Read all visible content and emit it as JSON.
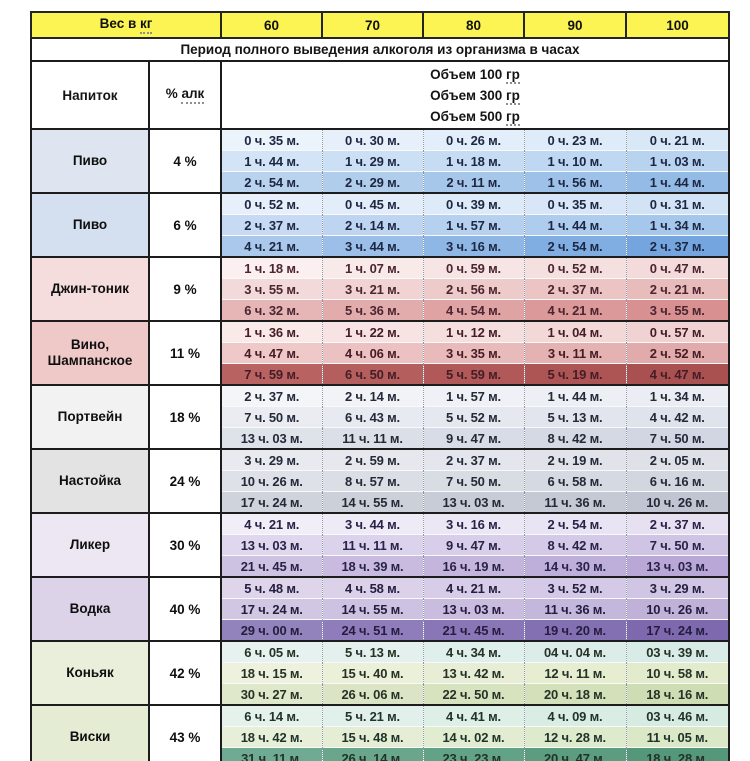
{
  "header": {
    "weight_label_prefix": "Вес в ",
    "weight_label_unit": "кг",
    "drink_col": "Напиток",
    "alc_prefix": "% ",
    "alc_word": "алк",
    "volume_lines": [
      {
        "text": "Объем 100 ",
        "unit": "гр"
      },
      {
        "text": "Объем 300 ",
        "unit": "гр"
      },
      {
        "text": "Объем 500 ",
        "unit": "гр"
      }
    ]
  },
  "colors": {
    "header_yellow": "#fbf452",
    "table_border": "#1c1c1c",
    "background": "#ffffff"
  },
  "chart_data": {
    "type": "table",
    "title": "Период полного выведения алкоголя из организма в часах",
    "weight_header": "Вес в кг",
    "weights": [
      "60",
      "70",
      "80",
      "90",
      "100"
    ],
    "volumes_g": [
      100,
      300,
      500
    ],
    "drinks": [
      {
        "name": "Пиво",
        "name_lines": [
          "Пиво"
        ],
        "abv": "4 %",
        "times": [
          [
            "0 ч. 35 м.",
            "0 ч. 30 м.",
            "0 ч. 26 м.",
            "0 ч. 23 м.",
            "0 ч. 21 м."
          ],
          [
            "1 ч. 44 м.",
            "1 ч. 29 м.",
            "1 ч. 18 м.",
            "1 ч. 10 м.",
            "1 ч. 03 м."
          ],
          [
            "2 ч. 54 м.",
            "2 ч. 29 м.",
            "2 ч. 11 м.",
            "1 ч. 56 м.",
            "1 ч. 44 м."
          ]
        ],
        "style": {
          "name_bg": "#dfe5f0",
          "text_color": "#1d2742",
          "row_bgs": [
            [
              "#ebf3fb",
              "#d9e8f7"
            ],
            [
              "#d3e4f6",
              "#b7d3f0"
            ],
            [
              "#b9d3ee",
              "#93bbe6"
            ]
          ]
        }
      },
      {
        "name": "Пиво",
        "name_lines": [
          "Пиво"
        ],
        "abv": "6 %",
        "times": [
          [
            "0 ч. 52 м.",
            "0 ч. 45 м.",
            "0 ч. 39 м.",
            "0 ч. 35 м.",
            "0 ч. 31 м."
          ],
          [
            "2 ч. 37 м.",
            "2 ч. 14 м.",
            "1 ч. 57 м.",
            "1 ч. 44 м.",
            "1 ч. 34 м."
          ],
          [
            "4 ч. 21 м.",
            "3 ч. 44 м.",
            "3 ч. 16 м.",
            "2 ч. 54 м.",
            "2 ч. 37 м."
          ]
        ],
        "style": {
          "name_bg": "#d4dff0",
          "text_color": "#1d2742",
          "row_bgs": [
            [
              "#e7f0fa",
              "#d3e3f6"
            ],
            [
              "#c6daf3",
              "#a6c7ec"
            ],
            [
              "#a9c8ec",
              "#74a5de"
            ]
          ]
        }
      },
      {
        "name": "Джин-тоник",
        "name_lines": [
          "Джин-тоник"
        ],
        "abv": "9 %",
        "times": [
          [
            "1 ч. 18 м.",
            "1 ч. 07 м.",
            "0 ч. 59 м.",
            "0 ч. 52 м.",
            "0 ч. 47 м."
          ],
          [
            "3 ч. 55 м.",
            "3 ч. 21 м.",
            "2 ч. 56 м.",
            "2 ч. 37 м.",
            "2 ч. 21 м."
          ],
          [
            "6 ч. 32 м.",
            "5 ч. 36 м.",
            "4 ч. 54 м.",
            "4 ч. 21 м.",
            "3 ч. 55 м."
          ]
        ],
        "style": {
          "name_bg": "#f5dddd",
          "text_color": "#4b2530",
          "row_bgs": [
            [
              "#fbefef",
              "#f3dbdb"
            ],
            [
              "#f3dada",
              "#e9bcbc"
            ],
            [
              "#e6b5b5",
              "#d89090"
            ]
          ]
        }
      },
      {
        "name": "Вино, Шампанское",
        "name_lines": [
          "Вино,",
          "Шампанское"
        ],
        "abv": "11 %",
        "times": [
          [
            "1 ч. 36 м.",
            "1 ч. 22 м.",
            "1 ч. 12 м.",
            "1 ч. 04 м.",
            "0 ч. 57 м."
          ],
          [
            "4 ч. 47 м.",
            "4 ч. 06 м.",
            "3 ч. 35 м.",
            "3 ч. 11 м.",
            "2 ч. 52 м."
          ],
          [
            "7 ч. 59 м.",
            "6 ч. 50 м.",
            "5 ч. 59 м.",
            "5 ч. 19 м.",
            "4 ч. 47 м."
          ]
        ],
        "style": {
          "name_bg": "#efc8c8",
          "text_color": "#441d26",
          "row_bgs": [
            [
              "#f9e9e9",
              "#f1d2d2"
            ],
            [
              "#efc8c8",
              "#e2abab"
            ],
            [
              "#b96262",
              "#a95050"
            ]
          ]
        }
      },
      {
        "name": "Портвейн",
        "name_lines": [
          "Портвейн"
        ],
        "abv": "18 %",
        "times": [
          [
            "2 ч. 37 м.",
            "2 ч. 14 м.",
            "1 ч. 57 м.",
            "1 ч. 44 м.",
            "1 ч. 34 м."
          ],
          [
            "7 ч. 50 м.",
            "6 ч. 43 м.",
            "5 ч. 52 м.",
            "5 ч. 13 м.",
            "4 ч. 42 м."
          ],
          [
            "13 ч. 03 м.",
            "11 ч. 11 м.",
            "9 ч. 47 м.",
            "8 ч. 42 м.",
            "7 ч. 50 м."
          ]
        ],
        "style": {
          "name_bg": "#f2f2f2",
          "text_color": "#262a38",
          "row_bgs": [
            [
              "#f3f5f8",
              "#eaedf3"
            ],
            [
              "#eaecf1",
              "#dfe3eb"
            ],
            [
              "#dee2e9",
              "#d1d6e2"
            ]
          ]
        }
      },
      {
        "name": "Настойка",
        "name_lines": [
          "Настойка"
        ],
        "abv": "24 %",
        "times": [
          [
            "3 ч. 29 м.",
            "2 ч. 59 м.",
            "2 ч. 37 м.",
            "2 ч. 19 м.",
            "2 ч. 05 м."
          ],
          [
            "10 ч. 26 м.",
            "8 ч. 57 м.",
            "7 ч. 50 м.",
            "6 ч. 58 м.",
            "6 ч. 16 м."
          ],
          [
            "17 ч. 24 м.",
            "14 ч. 55 м.",
            "13 ч. 03 м.",
            "11 ч. 36 м.",
            "10 ч. 26 м."
          ]
        ],
        "style": {
          "name_bg": "#e3e3e3",
          "text_color": "#262a38",
          "row_bgs": [
            [
              "#e8eaef",
              "#dee1e8"
            ],
            [
              "#dee1e7",
              "#d2d6df"
            ],
            [
              "#cfd3db",
              "#c0c5d1"
            ]
          ]
        }
      },
      {
        "name": "Ликер",
        "name_lines": [
          "Ликер"
        ],
        "abv": "30 %",
        "times": [
          [
            "4 ч. 21 м.",
            "3 ч. 44 м.",
            "3 ч. 16 м.",
            "2 ч. 54 м.",
            "2 ч. 37 м."
          ],
          [
            "13 ч. 03 м.",
            "11 ч. 11 м.",
            "9 ч. 47 м.",
            "8 ч. 42 м.",
            "7 ч. 50 м."
          ],
          [
            "21 ч. 45 м.",
            "18 ч. 39 м.",
            "16 ч. 19 м.",
            "14 ч. 30 м.",
            "13 ч. 03 м."
          ]
        ],
        "style": {
          "name_bg": "#ece7f2",
          "text_color": "#2a2348",
          "row_bgs": [
            [
              "#f1eef7",
              "#e6e0f1"
            ],
            [
              "#dfd7ed",
              "#d0c4e5"
            ],
            [
              "#cec2e3",
              "#b9a7d7"
            ]
          ]
        }
      },
      {
        "name": "Водка",
        "name_lines": [
          "Водка"
        ],
        "abv": "40 %",
        "times": [
          [
            "5 ч. 48 м.",
            "4 ч. 58 м.",
            "4 ч. 21 м.",
            "3 ч. 52 м.",
            "3 ч. 29 м."
          ],
          [
            "17 ч. 24 м.",
            "14 ч. 55 м.",
            "13 ч. 03 м.",
            "11 ч. 36 м.",
            "10 ч. 26 м."
          ],
          [
            "29 ч. 00 м.",
            "24 ч. 51 м.",
            "21 ч. 45 м.",
            "19 ч. 20 м.",
            "17 ч. 24 м."
          ]
        ],
        "style": {
          "name_bg": "#ddd3e9",
          "text_color": "#251d3e",
          "row_bgs": [
            [
              "#ded5eb",
              "#d1c5e4"
            ],
            [
              "#d1c7e3",
              "#c0b1d9"
            ],
            [
              "#9383bd",
              "#7e69af"
            ]
          ]
        }
      },
      {
        "name": "Коньяк",
        "name_lines": [
          "Коньяк"
        ],
        "abv": "42 %",
        "times": [
          [
            "6 ч. 05 м.",
            "5 ч. 13 м.",
            "4 ч. 34 м.",
            "04 ч. 04 м.",
            "03 ч. 39 м."
          ],
          [
            "18 ч. 15 м.",
            "15 ч. 40 м.",
            "13 ч. 42 м.",
            "12 ч. 11 м.",
            "10 ч. 58 м."
          ],
          [
            "30 ч. 27 м.",
            "26 ч. 06 м.",
            "22 ч. 50 м.",
            "20 ч. 18 м.",
            "18 ч. 16 м."
          ]
        ],
        "style": {
          "name_bg": "#e9efdb",
          "text_color": "#263226",
          "row_bgs": [
            [
              "#e6f2f0",
              "#d8ebe6"
            ],
            [
              "#edf1dd",
              "#e3ebcd"
            ],
            [
              "#dfe8ca",
              "#cfddb4"
            ]
          ]
        }
      },
      {
        "name": "Виски",
        "name_lines": [
          "Виски"
        ],
        "abv": "43 %",
        "times": [
          [
            "6 ч. 14 м.",
            "5 ч. 21 м.",
            "4 ч. 41 м.",
            "4 ч. 09 м.",
            "03 ч. 46 м."
          ],
          [
            "18 ч. 42 м.",
            "15 ч. 48 м.",
            "14 ч. 02 м.",
            "12 ч. 28 м.",
            "11 ч. 05 м."
          ],
          [
            "31 ч. 11 м.",
            "26 ч. 14 м.",
            "23 ч. 23 м.",
            "20 ч. 47 м.",
            "18 ч. 28 м."
          ]
        ],
        "style": {
          "name_bg": "#e4ecd3",
          "text_color": "#1f332b",
          "row_bgs": [
            [
              "#e5f2ec",
              "#d6ebe2"
            ],
            [
              "#e8efd9",
              "#dbe8c8"
            ],
            [
              "#6fab92",
              "#559879"
            ]
          ]
        }
      }
    ]
  }
}
